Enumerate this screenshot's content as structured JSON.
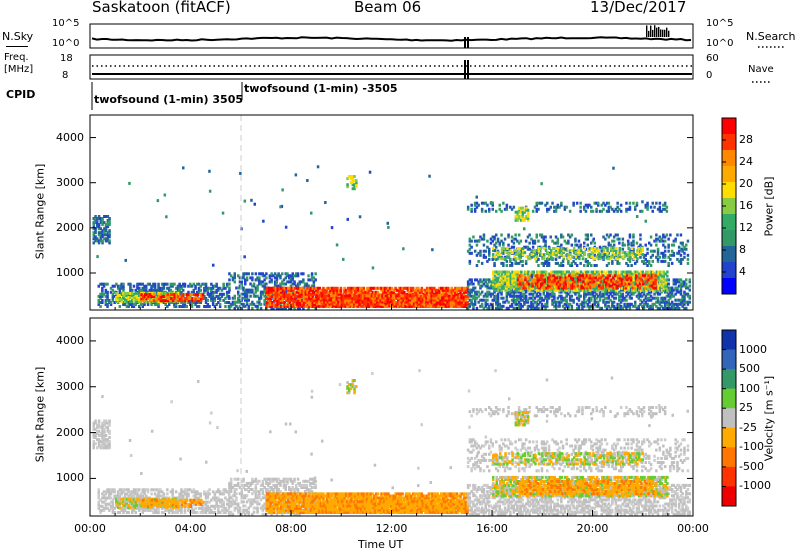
{
  "header": {
    "station": "Saskatoon (fitACF)",
    "beam": "Beam 06",
    "date": "13/Dec/2017"
  },
  "top_panel": {
    "left_label": "N.Sky",
    "left_ticks": [
      "10^5",
      "10^0"
    ],
    "right_label": "N.Search",
    "right_ticks": [
      "10^5",
      "10^0"
    ]
  },
  "freq_panel": {
    "left_label_1": "Freq.",
    "left_label_2": "[MHz]",
    "left_ticks": [
      "18",
      "8"
    ],
    "right_label": "Nave",
    "right_ticks": [
      "60",
      "0"
    ]
  },
  "cpid": {
    "label": "CPID",
    "mode_1": "twofsound (1-min) 3505",
    "mode_2": "twofsound (1-min) -3505"
  },
  "chart_data": [
    {
      "type": "heatmap",
      "name": "power",
      "ylabel": "Slant Range [km]",
      "ylim": [
        180,
        4500
      ],
      "yticks": [
        "4000",
        "3000",
        "2000",
        "1000"
      ],
      "xlabel": "",
      "xticks": [
        "00:00",
        "04:00",
        "08:00",
        "12:00",
        "16:00",
        "20:00",
        "00:00"
      ],
      "colorbar": {
        "label": "Power [dB]",
        "ticks": [
          "28",
          "24",
          "20",
          "16",
          "12",
          "8",
          "4"
        ],
        "colors": [
          "#ff0000",
          "#ff3300",
          "#ff8800",
          "#ffaa00",
          "#ffdd00",
          "#88cc44",
          "#33aa66",
          "#339966",
          "#226699",
          "#2244cc",
          "#0000ff"
        ]
      }
    },
    {
      "type": "heatmap",
      "name": "velocity",
      "ylabel": "Slant Range [km]",
      "ylim": [
        180,
        4500
      ],
      "yticks": [
        "4000",
        "3000",
        "2000",
        "1000"
      ],
      "xlabel": "Time UT",
      "xticks": [
        "00:00",
        "04:00",
        "08:00",
        "12:00",
        "16:00",
        "20:00",
        "00:00"
      ],
      "colorbar": {
        "label": "Velocity [m s⁻¹]",
        "ticks": [
          "1000",
          "500",
          "100",
          "25",
          "-25",
          "-100",
          "-500",
          "-1000"
        ],
        "colors": [
          "#1133aa",
          "#3366bb",
          "#339966",
          "#66cc33",
          "#c0c0c0",
          "#ffaa00",
          "#ff7700",
          "#ff3300",
          "#ee0000"
        ]
      }
    }
  ]
}
